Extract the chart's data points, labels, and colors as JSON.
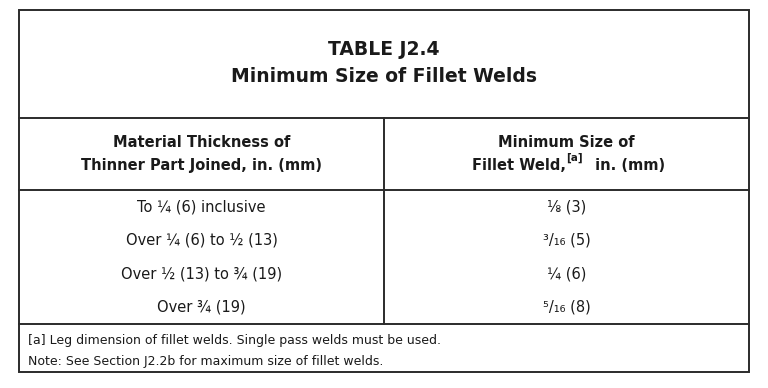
{
  "title_line1": "TABLE J2.4",
  "title_line2": "Minimum Size of Fillet Welds",
  "col1_header_line1": "Material Thickness of",
  "col1_header_line2": "Thinner Part Joined, in. (mm)",
  "col2_header_line1": "Minimum Size of",
  "col2_header_line2a": "Fillet Weld,",
  "col2_header_sup": "[a]",
  "col2_header_line2b": " in. (mm)",
  "data_col1": [
    "To ¼ (6) inclusive",
    "Over ¼ (6) to ½ (13)",
    "Over ½ (13) to ¾ (19)",
    "Over ¾ (19)"
  ],
  "data_col2": [
    "⅛ (3)",
    "³/₁₆ (5)",
    "¼ (6)",
    "⁵/₁₆ (8)"
  ],
  "footnote_line1": "[a] Leg dimension of fillet welds. Single pass welds must be used.",
  "footnote_line2": "Note: See Section J2.2b for maximum size of fillet welds.",
  "bg_color": "#ffffff",
  "border_color": "#2b2b2b",
  "text_color": "#1a1a1a",
  "title_fontsize": 13.5,
  "header_fontsize": 10.5,
  "data_fontsize": 10.5,
  "footnote_fontsize": 9.0,
  "fig_width": 7.68,
  "fig_height": 3.88,
  "dpi": 100
}
